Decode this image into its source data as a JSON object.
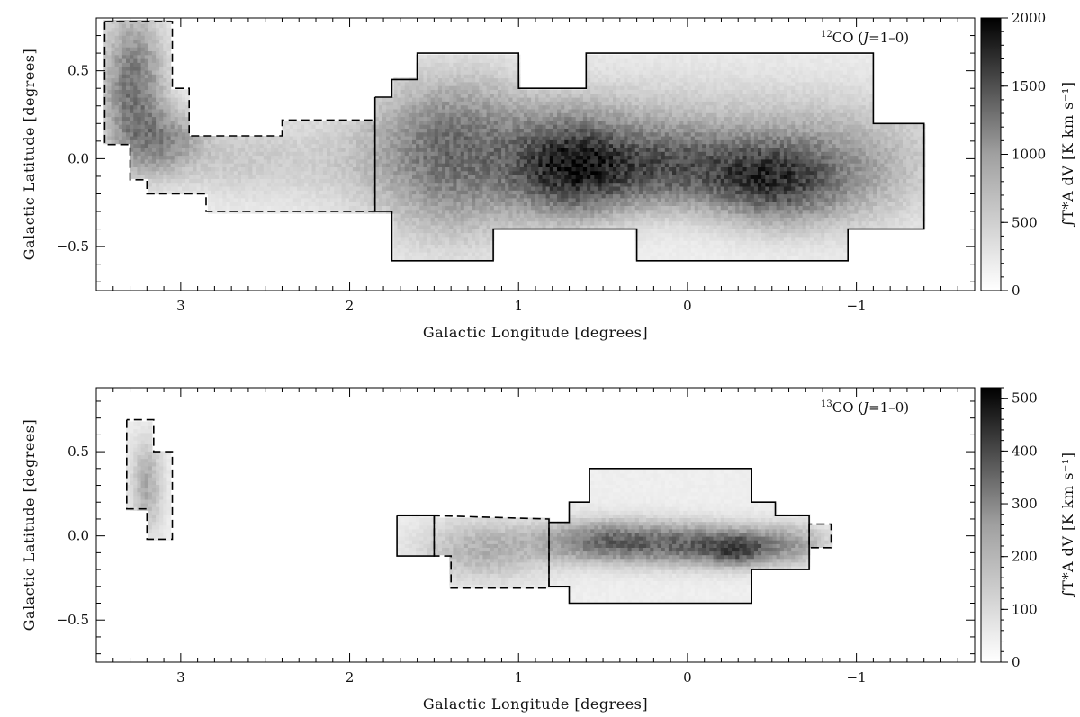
{
  "chart_data": [
    {
      "type": "heatmap",
      "title": "",
      "panel_label": {
        "sup": "12",
        "main": "CO (",
        "j": "J",
        "rest": "=1–0)"
      },
      "xlabel": "Galactic Longitude [degrees]",
      "ylabel": "Galactic Latitude [degrees]",
      "xlim": [
        3.5,
        -1.7
      ],
      "ylim": [
        -0.75,
        0.8
      ],
      "xticks": [
        3,
        2,
        1,
        0,
        -1
      ],
      "xtick_labels": [
        "3",
        "2",
        "1",
        "0",
        "−1"
      ],
      "yticks": [
        0.5,
        0.0,
        -0.5
      ],
      "ytick_labels": [
        "0.5",
        "0.0",
        "−0.5"
      ],
      "colorbar": {
        "label": "∫T*A dV [K km s⁻¹]",
        "min": 0,
        "max": 2000,
        "ticks": [
          0,
          500,
          1000,
          1500,
          2000
        ],
        "tick_labels": [
          "0",
          "500",
          "1000",
          "1500",
          "2000"
        ]
      },
      "emission_regions": [
        {
          "l": 3.28,
          "b": 0.4,
          "sl": 0.12,
          "sb": 0.28,
          "amp": 900
        },
        {
          "l": 3.1,
          "b": 0.1,
          "sl": 0.15,
          "sb": 0.12,
          "amp": 600
        },
        {
          "l": 2.7,
          "b": 0.0,
          "sl": 0.25,
          "sb": 0.15,
          "amp": 200
        },
        {
          "l": 2.1,
          "b": -0.05,
          "sl": 0.3,
          "sb": 0.15,
          "amp": 140
        },
        {
          "l": 1.4,
          "b": 0.0,
          "sl": 0.3,
          "sb": 0.28,
          "amp": 850
        },
        {
          "l": 0.7,
          "b": -0.05,
          "sl": 0.25,
          "sb": 0.18,
          "amp": 1400
        },
        {
          "l": 0.1,
          "b": -0.05,
          "sl": 0.35,
          "sb": 0.15,
          "amp": 1000
        },
        {
          "l": -0.5,
          "b": -0.12,
          "sl": 0.25,
          "sb": 0.15,
          "amp": 1050
        },
        {
          "l": -0.9,
          "b": -0.08,
          "sl": 0.35,
          "sb": 0.2,
          "amp": 500
        },
        {
          "l": 0.3,
          "b": 0.2,
          "sl": 1.2,
          "sb": 0.2,
          "amp": 250
        }
      ],
      "outline_solid": [
        [
          1.85,
          0.35
        ],
        [
          1.85,
          -0.3
        ],
        [
          1.75,
          -0.3
        ],
        [
          1.75,
          -0.58
        ],
        [
          1.15,
          -0.58
        ],
        [
          1.15,
          -0.4
        ],
        [
          0.3,
          -0.4
        ],
        [
          0.3,
          -0.58
        ],
        [
          -0.95,
          -0.58
        ],
        [
          -0.95,
          -0.4
        ],
        [
          -1.4,
          -0.4
        ],
        [
          -1.4,
          0.2
        ],
        [
          -1.1,
          0.2
        ],
        [
          -1.1,
          0.6
        ],
        [
          -0.8,
          0.6
        ],
        [
          -0.8,
          0.6
        ],
        [
          0.6,
          0.6
        ],
        [
          0.6,
          0.4
        ],
        [
          1.0,
          0.4
        ],
        [
          1.0,
          0.6
        ],
        [
          1.6,
          0.6
        ],
        [
          1.6,
          0.45
        ],
        [
          1.75,
          0.45
        ],
        [
          1.75,
          0.35
        ],
        [
          1.85,
          0.35
        ]
      ],
      "outline_dashed": [
        [
          3.45,
          0.78
        ],
        [
          3.45,
          0.08
        ],
        [
          3.3,
          0.08
        ],
        [
          3.3,
          -0.12
        ],
        [
          3.2,
          -0.12
        ],
        [
          3.2,
          -0.2
        ],
        [
          2.85,
          -0.2
        ],
        [
          2.85,
          -0.3
        ],
        [
          1.85,
          -0.3
        ],
        [
          1.85,
          0.22
        ],
        [
          2.4,
          0.22
        ],
        [
          2.4,
          0.13
        ],
        [
          2.85,
          0.13
        ],
        [
          2.95,
          0.13
        ],
        [
          2.95,
          0.4
        ],
        [
          3.05,
          0.4
        ],
        [
          3.05,
          0.78
        ],
        [
          3.45,
          0.78
        ]
      ]
    },
    {
      "type": "heatmap",
      "title": "",
      "panel_label": {
        "sup": "13",
        "main": "CO (",
        "j": "J",
        "rest": "=1–0)"
      },
      "xlabel": "Galactic Longitude [degrees]",
      "ylabel": "Galactic Latitude [degrees]",
      "xlim": [
        3.5,
        -1.7
      ],
      "ylim": [
        -0.75,
        0.88
      ],
      "xticks": [
        3,
        2,
        1,
        0,
        -1
      ],
      "xtick_labels": [
        "3",
        "2",
        "1",
        "0",
        "−1"
      ],
      "yticks": [
        0.5,
        0.0,
        -0.5
      ],
      "ytick_labels": [
        "0.5",
        "0.0",
        "−0.5"
      ],
      "colorbar": {
        "label": "∫T*A dV [K km s⁻¹]",
        "min": 0,
        "max": 520,
        "ticks": [
          0,
          100,
          200,
          300,
          400,
          500
        ],
        "tick_labels": [
          "0",
          "100",
          "200",
          "300",
          "400",
          "500"
        ]
      },
      "emission_regions": [
        {
          "l": 3.2,
          "b": 0.3,
          "sl": 0.06,
          "sb": 0.18,
          "amp": 120
        },
        {
          "l": 1.2,
          "b": -0.08,
          "sl": 0.25,
          "sb": 0.12,
          "amp": 110
        },
        {
          "l": 0.5,
          "b": -0.03,
          "sl": 0.25,
          "sb": 0.08,
          "amp": 220
        },
        {
          "l": -0.05,
          "b": -0.05,
          "sl": 0.3,
          "sb": 0.08,
          "amp": 240
        },
        {
          "l": -0.3,
          "b": -0.08,
          "sl": 0.12,
          "sb": 0.06,
          "amp": 220
        },
        {
          "l": -0.6,
          "b": -0.05,
          "sl": 0.15,
          "sb": 0.08,
          "amp": 120
        }
      ],
      "outline_solid": [
        [
          1.72,
          0.12
        ],
        [
          1.72,
          -0.12
        ],
        [
          1.5,
          -0.12
        ],
        [
          1.5,
          0.12
        ],
        [
          1.72,
          0.12
        ]
      ],
      "outline_solid2": [
        [
          0.82,
          0.08
        ],
        [
          0.82,
          -0.3
        ],
        [
          0.7,
          -0.3
        ],
        [
          0.7,
          -0.4
        ],
        [
          -0.38,
          -0.4
        ],
        [
          -0.38,
          -0.2
        ],
        [
          -0.72,
          -0.2
        ],
        [
          -0.72,
          0.12
        ],
        [
          -0.52,
          0.12
        ],
        [
          -0.52,
          0.2
        ],
        [
          -0.38,
          0.2
        ],
        [
          -0.38,
          0.4
        ],
        [
          0.58,
          0.4
        ],
        [
          0.58,
          0.2
        ],
        [
          0.7,
          0.2
        ],
        [
          0.7,
          0.08
        ],
        [
          0.82,
          0.08
        ]
      ],
      "outline_dashed": [
        [
          3.32,
          0.69
        ],
        [
          3.32,
          0.16
        ],
        [
          3.2,
          0.16
        ],
        [
          3.2,
          -0.02
        ],
        [
          3.05,
          -0.02
        ],
        [
          3.05,
          0.5
        ],
        [
          3.16,
          0.5
        ],
        [
          3.16,
          0.69
        ],
        [
          3.32,
          0.69
        ]
      ],
      "outline_dashed2": [
        [
          1.5,
          0.12
        ],
        [
          1.5,
          -0.12
        ],
        [
          1.4,
          -0.12
        ],
        [
          1.4,
          -0.31
        ],
        [
          0.82,
          -0.31
        ],
        [
          0.82,
          0.1
        ],
        [
          1.5,
          0.12
        ]
      ],
      "outline_dashed3": [
        [
          -0.72,
          0.07
        ],
        [
          -0.72,
          -0.07
        ],
        [
          -0.85,
          -0.07
        ],
        [
          -0.85,
          0.07
        ],
        [
          -0.72,
          0.07
        ]
      ]
    }
  ]
}
